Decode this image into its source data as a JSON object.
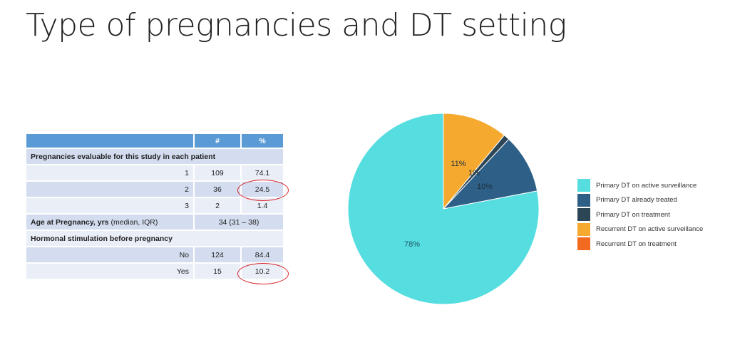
{
  "title": "Type of pregnancies and DT setting",
  "table": {
    "headers": [
      "",
      "#",
      "%"
    ],
    "section1": "Pregnancies evaluable for this study in each patient",
    "rows1": [
      [
        "1",
        "109",
        "74.1"
      ],
      [
        "2",
        "36",
        "24.5"
      ],
      [
        "3",
        "2",
        "1.4"
      ]
    ],
    "age_label": "Age at Pregnancy, yrs",
    "age_note": "(median, IQR)",
    "age_value": "34 (31 – 38)",
    "section2": "Hormonal stimulation before pregnancy",
    "rows2": [
      [
        "No",
        "124",
        "84.4"
      ],
      [
        "Yes",
        "15",
        "10.2"
      ]
    ]
  },
  "chart_data": {
    "type": "pie",
    "slices": [
      {
        "label": "Recurrent DT on active surveillance",
        "value": 11,
        "display": "11%",
        "color": "#f5a92f"
      },
      {
        "label": "Primary DT on treatment",
        "value": 1,
        "display": "1%",
        "color": "#2d4656"
      },
      {
        "label": "Primary DT already treated",
        "value": 10,
        "display": "10%",
        "color": "#2e5f86"
      },
      {
        "label": "Primary DT on active surveillance",
        "value": 78,
        "display": "78%",
        "color": "#55dde0"
      },
      {
        "label": "Recurrent DT on treatment",
        "value": 0,
        "display": "",
        "color": "#f26a1f"
      }
    ],
    "legend": [
      {
        "label": "Primary DT on active surveillance",
        "color": "#55dde0"
      },
      {
        "label": "Primary DT already treated",
        "color": "#2e5f86"
      },
      {
        "label": "Primary DT on treatment",
        "color": "#2d4656"
      },
      {
        "label": "Recurrent DT on active surveillance",
        "color": "#f5a92f"
      },
      {
        "label": "Recurrent DT on treatment",
        "color": "#f26a1f"
      }
    ],
    "legend_position": "right"
  }
}
